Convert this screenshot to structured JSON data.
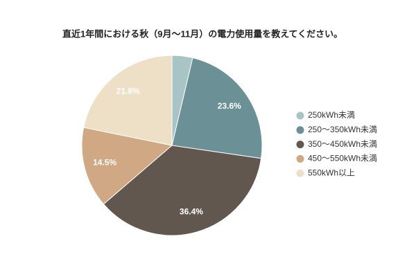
{
  "chart_data": {
    "type": "pie",
    "title": "直近1年間における秋（9月〜11月）の電力使用量を教えてください。",
    "categories": [
      "250kWh未満",
      "250〜350kWh未満",
      "350〜450kWh未満",
      "450〜550kWh未満",
      "550kWh以上"
    ],
    "values": [
      3.7,
      23.6,
      36.4,
      14.5,
      21.8
    ],
    "value_labels": [
      null,
      "23.6%",
      "36.4%",
      "14.5%",
      "21.8%"
    ],
    "colors": [
      "#a9c4c4",
      "#6b9197",
      "#62574e",
      "#d0a883",
      "#ede0c7"
    ],
    "legend": "right"
  }
}
